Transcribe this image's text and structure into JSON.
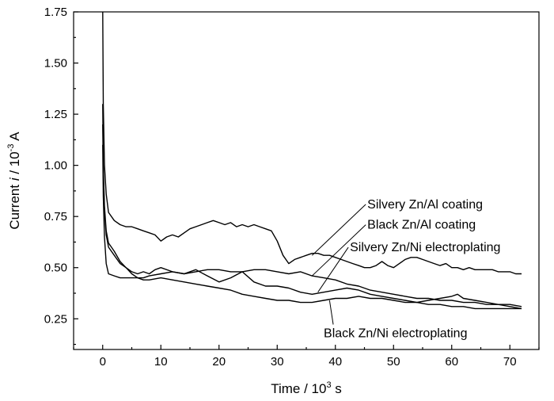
{
  "chart_data": {
    "type": "line",
    "title": "",
    "xlabel": "Time / 10",
    "xlabel_sup": "3",
    "xlabel_unit": " s",
    "ylabel_pre": "Current ",
    "ylabel_var": "i",
    "ylabel_mid": " / 10",
    "ylabel_sup": "-3",
    "ylabel_unit": " A",
    "xlim": [
      -5,
      75
    ],
    "ylim": [
      0.1,
      1.75
    ],
    "xticks": [
      0,
      10,
      20,
      30,
      40,
      50,
      60,
      70
    ],
    "yticks": [
      0.25,
      0.5,
      0.75,
      1.0,
      1.25,
      1.5,
      1.75
    ],
    "xtick_labels": [
      "0",
      "10",
      "20",
      "30",
      "40",
      "50",
      "60",
      "70"
    ],
    "ytick_labels": [
      "0.25",
      "0.50",
      "0.75",
      "1.00",
      "1.25",
      "1.50",
      "1.75"
    ],
    "grid": false,
    "series": [
      {
        "name": "Silvery Zn/Al coating",
        "x": [
          0,
          0.1,
          0.3,
          0.6,
          1,
          2,
          3,
          4,
          5,
          6,
          7,
          8,
          9,
          10,
          11,
          12,
          13,
          14,
          15,
          16,
          17,
          18,
          19,
          20,
          21,
          22,
          23,
          24,
          25,
          26,
          27,
          28,
          29,
          30,
          31,
          32,
          33,
          34,
          35,
          36,
          37,
          38,
          39,
          40,
          41,
          42,
          43,
          44,
          45,
          46,
          47,
          48,
          49,
          50,
          51,
          52,
          53,
          54,
          55,
          56,
          57,
          58,
          59,
          60,
          61,
          62,
          63,
          64,
          65,
          66,
          67,
          68,
          69,
          70,
          71,
          72
        ],
        "y": [
          1.75,
          1.3,
          1.0,
          0.86,
          0.77,
          0.73,
          0.71,
          0.7,
          0.7,
          0.69,
          0.68,
          0.67,
          0.66,
          0.63,
          0.65,
          0.66,
          0.65,
          0.67,
          0.69,
          0.7,
          0.71,
          0.72,
          0.73,
          0.72,
          0.71,
          0.72,
          0.7,
          0.71,
          0.7,
          0.71,
          0.7,
          0.69,
          0.68,
          0.63,
          0.56,
          0.52,
          0.54,
          0.55,
          0.56,
          0.57,
          0.57,
          0.56,
          0.56,
          0.55,
          0.54,
          0.53,
          0.52,
          0.51,
          0.5,
          0.5,
          0.51,
          0.53,
          0.51,
          0.5,
          0.52,
          0.54,
          0.55,
          0.55,
          0.54,
          0.53,
          0.52,
          0.51,
          0.52,
          0.5,
          0.5,
          0.49,
          0.5,
          0.49,
          0.49,
          0.49,
          0.49,
          0.48,
          0.48,
          0.48,
          0.47,
          0.47
        ]
      },
      {
        "name": "Black Zn/Al coating",
        "x": [
          0,
          0.1,
          0.3,
          0.6,
          1,
          1.5,
          2,
          3,
          4,
          5,
          6,
          7,
          8,
          9,
          10,
          12,
          14,
          16,
          18,
          20,
          22,
          24,
          26,
          28,
          30,
          32,
          34,
          36,
          38,
          40,
          42,
          44,
          46,
          48,
          50,
          52,
          54,
          56,
          58,
          60,
          62,
          64,
          66,
          68,
          70,
          72
        ],
        "y": [
          1.3,
          1.0,
          0.8,
          0.68,
          0.62,
          0.6,
          0.58,
          0.53,
          0.5,
          0.48,
          0.47,
          0.48,
          0.47,
          0.49,
          0.5,
          0.48,
          0.47,
          0.48,
          0.49,
          0.49,
          0.48,
          0.48,
          0.49,
          0.49,
          0.48,
          0.47,
          0.48,
          0.46,
          0.45,
          0.44,
          0.42,
          0.41,
          0.39,
          0.38,
          0.37,
          0.36,
          0.35,
          0.35,
          0.34,
          0.34,
          0.33,
          0.33,
          0.32,
          0.32,
          0.32,
          0.31
        ]
      },
      {
        "name": "Silvery Zn/Ni electroplating",
        "x": [
          0,
          0.1,
          0.3,
          0.6,
          1,
          2,
          3,
          4,
          5,
          6,
          7,
          8,
          10,
          12,
          14,
          16,
          18,
          20,
          22,
          24,
          26,
          28,
          30,
          32,
          34,
          36,
          38,
          40,
          42,
          44,
          46,
          48,
          50,
          52,
          54,
          56,
          58,
          60,
          61,
          62,
          64,
          66,
          68,
          70,
          72
        ],
        "y": [
          1.2,
          0.95,
          0.78,
          0.66,
          0.6,
          0.56,
          0.52,
          0.5,
          0.47,
          0.45,
          0.45,
          0.46,
          0.47,
          0.48,
          0.47,
          0.49,
          0.46,
          0.43,
          0.45,
          0.48,
          0.43,
          0.41,
          0.41,
          0.4,
          0.38,
          0.37,
          0.38,
          0.39,
          0.4,
          0.39,
          0.37,
          0.36,
          0.35,
          0.34,
          0.33,
          0.34,
          0.35,
          0.36,
          0.37,
          0.35,
          0.34,
          0.33,
          0.32,
          0.31,
          0.3
        ]
      },
      {
        "name": "Black Zn/Ni electroplating",
        "x": [
          0,
          0.1,
          0.3,
          0.6,
          1,
          2,
          3,
          4,
          5,
          6,
          7,
          8,
          10,
          12,
          14,
          16,
          18,
          20,
          22,
          24,
          26,
          28,
          30,
          32,
          34,
          36,
          38,
          40,
          42,
          44,
          46,
          48,
          50,
          52,
          54,
          56,
          58,
          60,
          62,
          64,
          66,
          68,
          70,
          72
        ],
        "y": [
          1.1,
          0.85,
          0.65,
          0.52,
          0.47,
          0.46,
          0.45,
          0.45,
          0.45,
          0.45,
          0.44,
          0.44,
          0.45,
          0.44,
          0.43,
          0.42,
          0.41,
          0.4,
          0.39,
          0.37,
          0.36,
          0.35,
          0.34,
          0.34,
          0.33,
          0.33,
          0.34,
          0.35,
          0.35,
          0.36,
          0.35,
          0.35,
          0.34,
          0.33,
          0.33,
          0.32,
          0.32,
          0.31,
          0.31,
          0.3,
          0.3,
          0.3,
          0.3,
          0.3
        ]
      }
    ],
    "annotations": [
      {
        "text": "Silvery Zn/Al coating",
        "series": 0,
        "point": [
          36,
          0.56
        ],
        "label_pos": [
          45.5,
          0.79
        ]
      },
      {
        "text": "Black Zn/Al coating",
        "series": 1,
        "point": [
          36,
          0.46
        ],
        "label_pos": [
          45.5,
          0.69
        ]
      },
      {
        "text": "Silvery Zn/Ni electroplating",
        "series": 2,
        "point": [
          37,
          0.38
        ],
        "label_pos": [
          42.5,
          0.58
        ]
      },
      {
        "text": "Black Zn/Ni electroplating",
        "series": 3,
        "point": [
          39,
          0.34
        ],
        "label_pos": [
          38,
          0.16
        ]
      }
    ]
  }
}
